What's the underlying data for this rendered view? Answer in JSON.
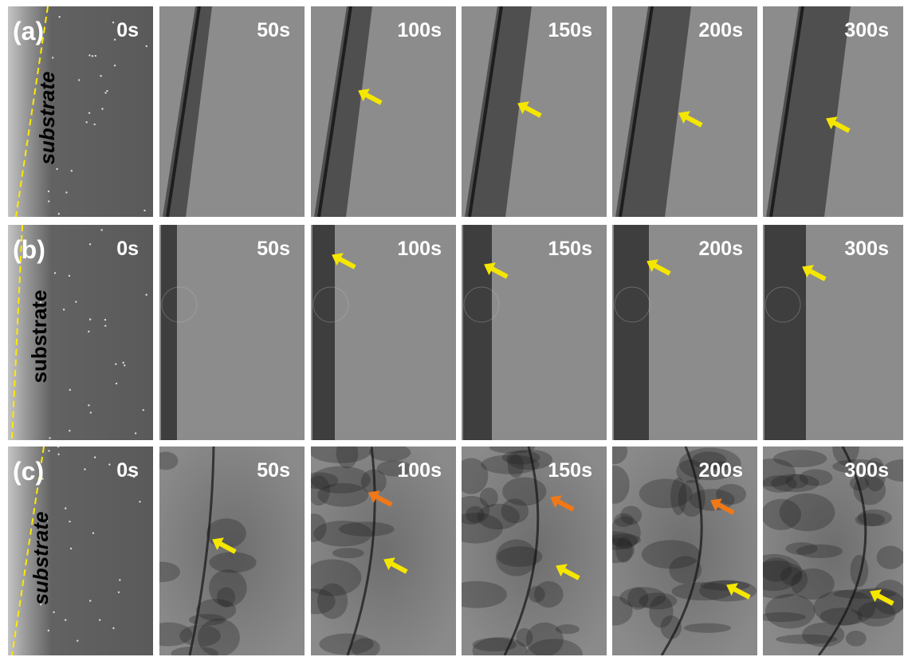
{
  "rows": [
    {
      "label": "(a)",
      "substrate": "substrate",
      "times": [
        "0s",
        "50s",
        "100s",
        "150s",
        "200s",
        "300s"
      ]
    },
    {
      "label": "(b)",
      "substrate": "substrate",
      "times": [
        "0s",
        "50s",
        "100s",
        "150s",
        "200s",
        "300s"
      ]
    },
    {
      "label": "(c)",
      "substrate": "substrate",
      "times": [
        "0s",
        "50s",
        "100s",
        "150s",
        "200s",
        "300s"
      ]
    }
  ]
}
